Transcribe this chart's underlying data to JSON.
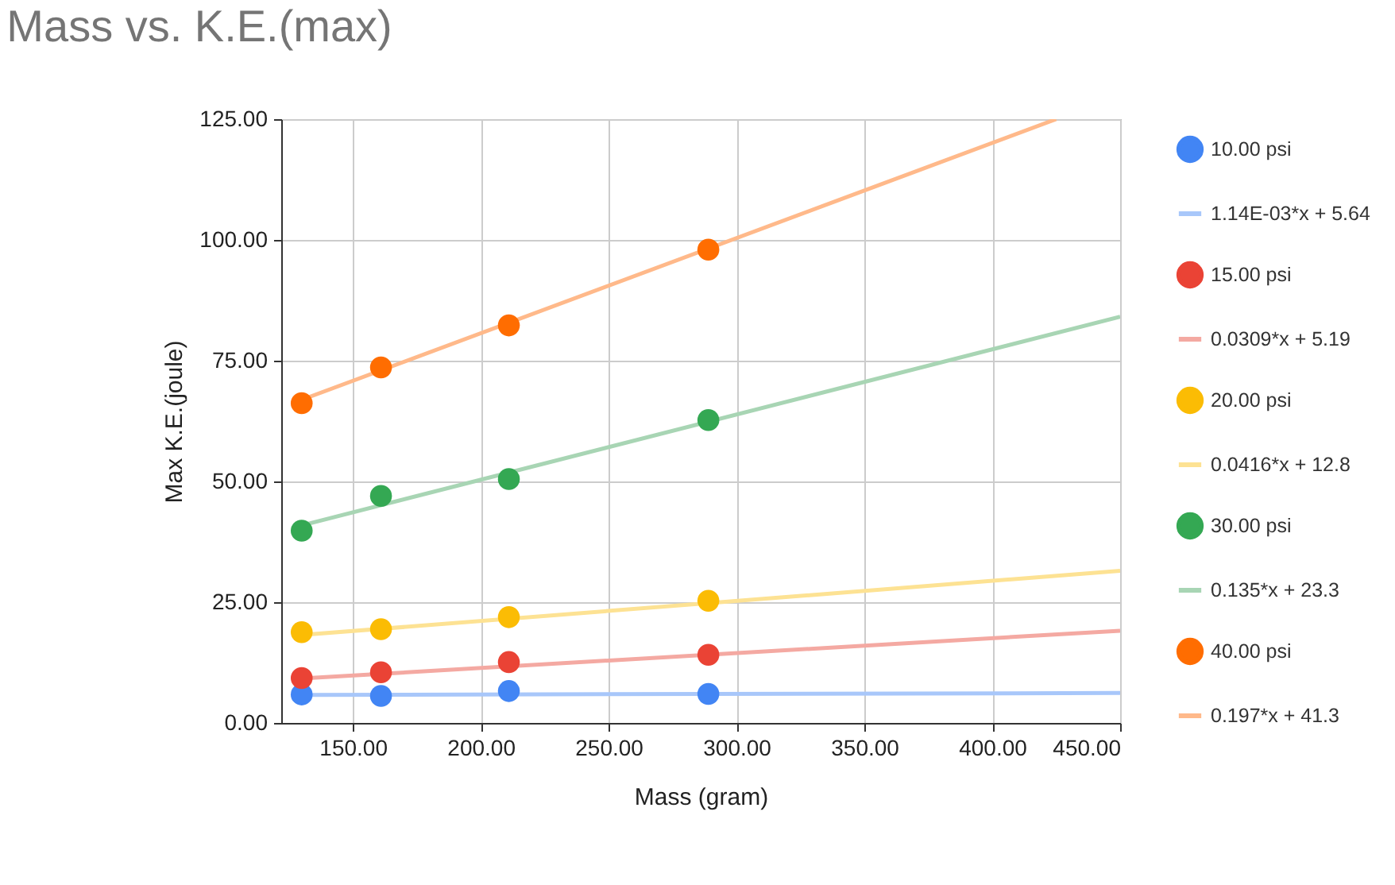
{
  "chart_data": {
    "type": "scatter",
    "title": "Mass vs. K.E.(max)",
    "xlabel": "Mass (gram)",
    "ylabel": "Max K.E.(joule)",
    "xlim": [
      122,
      450
    ],
    "ylim": [
      0,
      125
    ],
    "xticks": [
      {
        "value": 150,
        "label": "150.00"
      },
      {
        "value": 200,
        "label": "200.00"
      },
      {
        "value": 250,
        "label": "250.00"
      },
      {
        "value": 300,
        "label": "300.00"
      },
      {
        "value": 350,
        "label": "350.00"
      },
      {
        "value": 400,
        "label": "400.00"
      },
      {
        "value": 450,
        "label": "450.00"
      }
    ],
    "yticks": [
      {
        "value": 0,
        "label": "0.00"
      },
      {
        "value": 25,
        "label": "25.00"
      },
      {
        "value": 50,
        "label": "50.00"
      },
      {
        "value": 75,
        "label": "75.00"
      },
      {
        "value": 100,
        "label": "100.00"
      },
      {
        "value": 125,
        "label": "125.00"
      }
    ],
    "grid": true,
    "legend": "right",
    "series": [
      {
        "name": "10.00 psi",
        "color": "#4285f4",
        "marker": "circle",
        "x": [
          130,
          161,
          211,
          289
        ],
        "values": [
          5.9,
          5.6,
          6.6,
          6.0
        ]
      },
      {
        "type": "line",
        "name": "1.14E-03*x + 5.64",
        "color": "#a8c7fa",
        "marker": "none",
        "x": [
          130,
          450
        ],
        "values": [
          5.8,
          6.2
        ]
      },
      {
        "name": "15.00 psi",
        "color": "#ea4335",
        "marker": "circle",
        "x": [
          130,
          161,
          211,
          289
        ],
        "values": [
          9.3,
          10.5,
          12.6,
          14.1
        ]
      },
      {
        "type": "line",
        "name": "0.0309*x + 5.19",
        "color": "#f4a9a2",
        "marker": "none",
        "x": [
          130,
          450
        ],
        "values": [
          9.2,
          19.1
        ]
      },
      {
        "name": "20.00 psi",
        "color": "#fbbc04",
        "marker": "circle",
        "x": [
          130,
          161,
          211,
          289
        ],
        "values": [
          18.8,
          19.4,
          21.9,
          25.3
        ]
      },
      {
        "type": "line",
        "name": "0.0416*x + 12.8",
        "color": "#fde293",
        "marker": "none",
        "x": [
          130,
          450
        ],
        "values": [
          18.2,
          31.5
        ]
      },
      {
        "name": "30.00 psi",
        "color": "#34a853",
        "marker": "circle",
        "x": [
          130,
          161,
          211,
          289
        ],
        "values": [
          39.8,
          47.0,
          50.5,
          62.7
        ]
      },
      {
        "type": "line",
        "name": "0.135*x + 23.3",
        "color": "#a8d5b4",
        "marker": "none",
        "x": [
          130,
          450
        ],
        "values": [
          40.9,
          84.1
        ]
      },
      {
        "name": "40.00 psi",
        "color": "#ff6d01",
        "marker": "circle",
        "x": [
          130,
          161,
          211,
          289
        ],
        "values": [
          66.2,
          73.6,
          82.3,
          98.0
        ]
      },
      {
        "type": "line",
        "name": "0.197*x + 41.3",
        "color": "#ffb98a",
        "marker": "none",
        "x": [
          130,
          425
        ],
        "values": [
          66.9,
          125
        ]
      }
    ]
  }
}
